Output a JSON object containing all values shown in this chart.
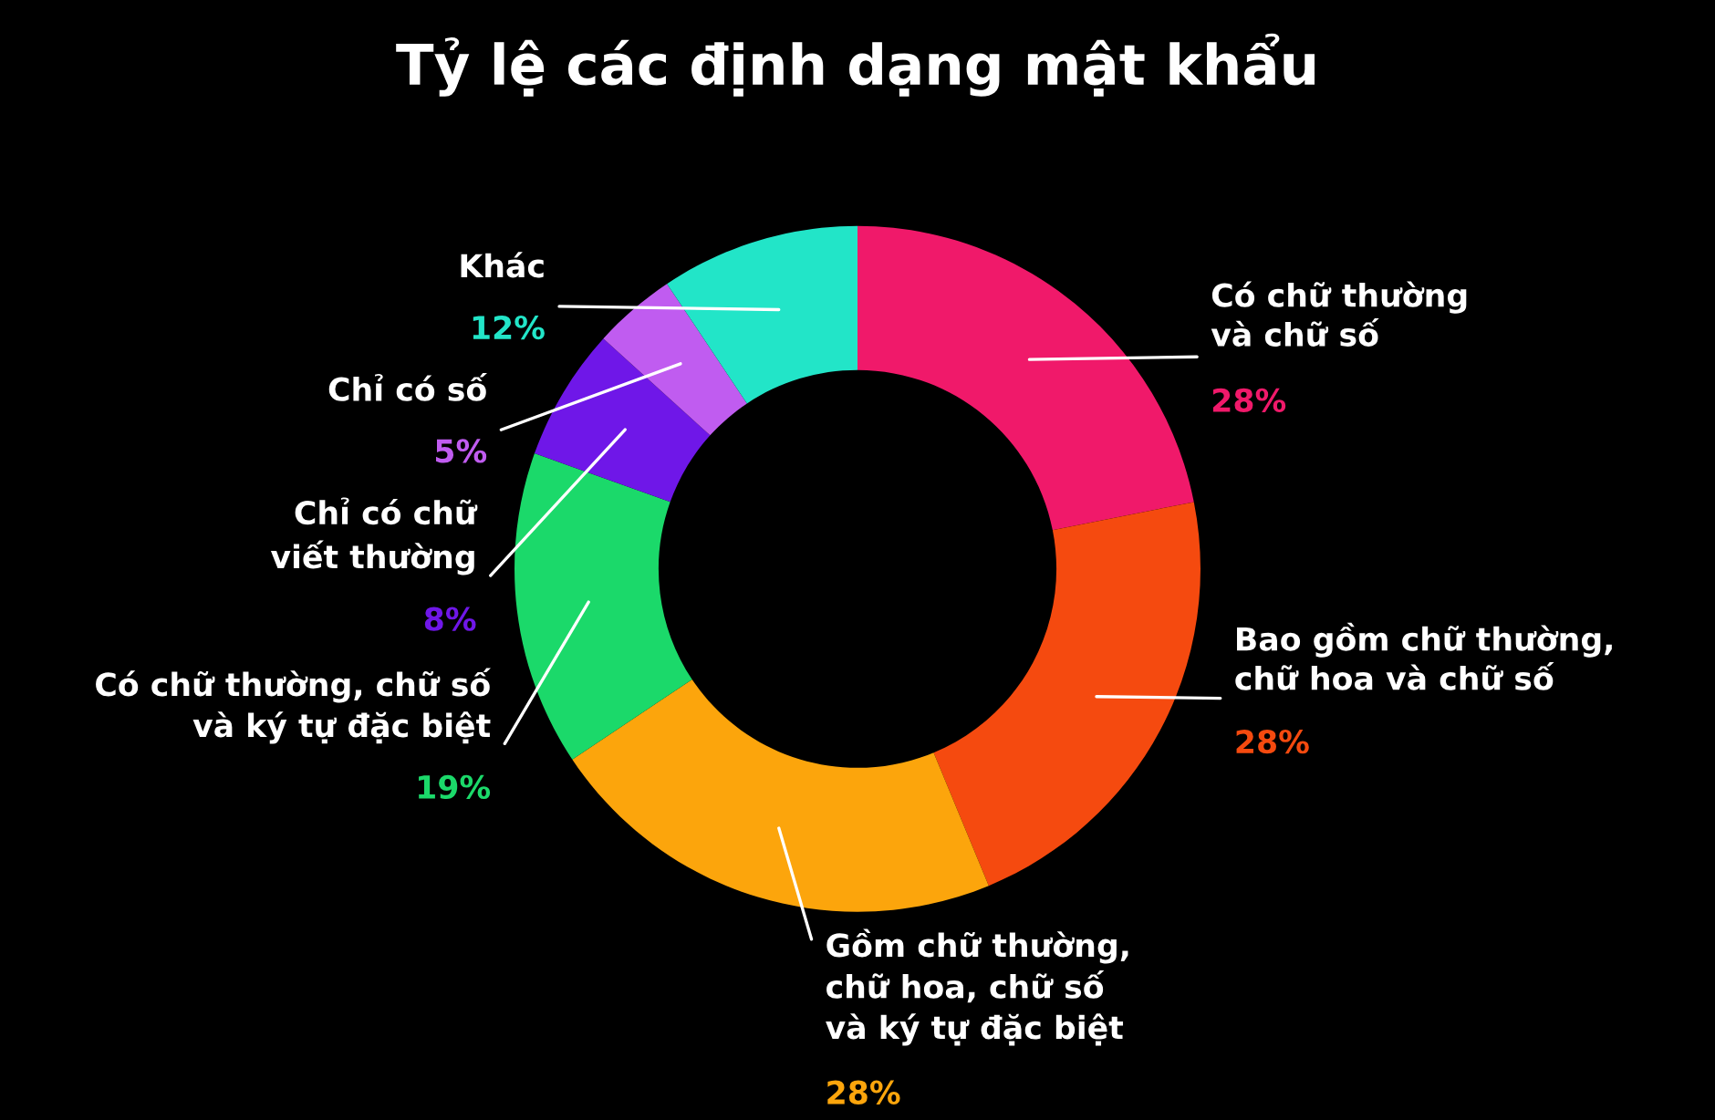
{
  "chart_data": {
    "type": "donut",
    "title": "Tỷ lệ các định dạng mật khẩu",
    "categories": [
      "Có chữ thường\nvà chữ số",
      "Bao gồm chữ thường,\nchữ hoa và chữ số",
      "Gồm chữ thường,\nchữ hoa, chữ số\nvà ký tự đặc biệt",
      "Có chữ thường, chữ số\nvà ký tự đặc biệt",
      "Chỉ có chữ\nviết thường",
      "Chỉ có số",
      "Khác"
    ],
    "values": [
      28,
      28,
      28,
      19,
      8,
      5,
      12
    ],
    "value_labels": [
      "28%",
      "28%",
      "28%",
      "19%",
      "8%",
      "5%",
      "12%"
    ],
    "colors": [
      "#f0196a",
      "#f54a0f",
      "#fca50c",
      "#1bd96a",
      "#6f17e8",
      "#c05cf0",
      "#22e5c8"
    ],
    "legend": false
  }
}
